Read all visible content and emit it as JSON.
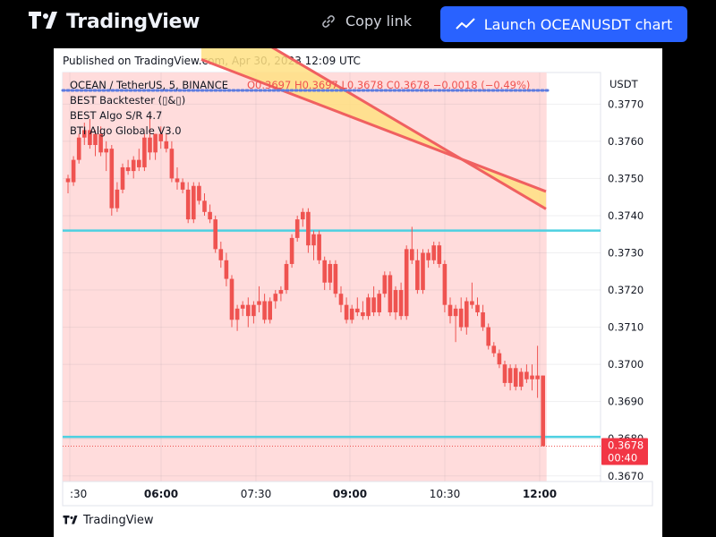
{
  "header": {
    "logo_text": "TradingView",
    "copy_link_label": "Copy link",
    "launch_label": "Launch OCEANUSDT chart"
  },
  "published": "Published on TradingView.com, Apr 30, 2023 12:09 UTC",
  "footer_logo": "TradingView",
  "legend": {
    "symbol": "OCEAN / TetherUS, 5, BINANCE",
    "ohlc": "O0.3697  H0.3697  L0.3678  C0.3678  −0.0018 (−0.49%)",
    "indicators": [
      "BEST Backtester (▯&▯)",
      "BEST Algo S/R 4.7",
      "BTI Algo Globale V3.0"
    ]
  },
  "price_axis": {
    "currency": "USDT",
    "last_price": "0.3678",
    "countdown": "00:40"
  },
  "colors": {
    "up": "#ef5350",
    "down": "#ef5350",
    "background_zone": "#ffdcdc",
    "sr_line": "#4dd0e1",
    "band_fill": "#ffe082",
    "band_edge": "#f06060",
    "dots": "#5c7be0",
    "brand_blue": "#2962ff"
  },
  "chart_data": {
    "type": "candlestick",
    "x_ticks": [
      ":30",
      "06:00",
      "07:30",
      "09:00",
      "10:30",
      "12:00"
    ],
    "bold_ticks": [
      "06:00",
      "09:00",
      "12:00"
    ],
    "y_ticks": [
      "0.3770",
      "0.3760",
      "0.3750",
      "0.3740",
      "0.3730",
      "0.3720",
      "0.3710",
      "0.3700",
      "0.3690",
      "0.3680",
      "0.3670"
    ],
    "ylim": [
      0.36685,
      0.37785
    ],
    "support_resistance": [
      0.3736,
      0.36805
    ],
    "dotted_line": 0.37737,
    "last_price": 0.3678,
    "band": {
      "upper_start": 0.3782,
      "upper_end": 0.37465,
      "lower_start": 0.37965,
      "lower_end": 0.37418
    },
    "candles": [
      [
        0.375,
        0.3751,
        0.3746,
        0.3749
      ],
      [
        0.3749,
        0.3756,
        0.3748,
        0.3755
      ],
      [
        0.3755,
        0.3762,
        0.3754,
        0.3761
      ],
      [
        0.3761,
        0.3765,
        0.3759,
        0.3763
      ],
      [
        0.3763,
        0.3766,
        0.3758,
        0.3759
      ],
      [
        0.3759,
        0.3763,
        0.3756,
        0.3762
      ],
      [
        0.3762,
        0.3764,
        0.3756,
        0.3757
      ],
      [
        0.3757,
        0.376,
        0.3752,
        0.3758
      ],
      [
        0.3758,
        0.3759,
        0.374,
        0.3742
      ],
      [
        0.3742,
        0.3749,
        0.3741,
        0.3747
      ],
      [
        0.3747,
        0.3754,
        0.3746,
        0.3753
      ],
      [
        0.3753,
        0.3755,
        0.3751,
        0.3752
      ],
      [
        0.3752,
        0.3756,
        0.375,
        0.3755
      ],
      [
        0.3755,
        0.3758,
        0.3752,
        0.3753
      ],
      [
        0.3753,
        0.3762,
        0.3752,
        0.3761
      ],
      [
        0.3761,
        0.3767,
        0.3755,
        0.3757
      ],
      [
        0.3757,
        0.3762,
        0.3755,
        0.3762
      ],
      [
        0.3762,
        0.3764,
        0.3758,
        0.376
      ],
      [
        0.376,
        0.3762,
        0.3757,
        0.3758
      ],
      [
        0.3758,
        0.376,
        0.3749,
        0.375
      ],
      [
        0.375,
        0.3753,
        0.3747,
        0.3749
      ],
      [
        0.3749,
        0.375,
        0.3746,
        0.3747
      ],
      [
        0.3747,
        0.3749,
        0.3738,
        0.3739
      ],
      [
        0.3739,
        0.3749,
        0.3738,
        0.3748
      ],
      [
        0.3748,
        0.3749,
        0.3743,
        0.3744
      ],
      [
        0.3744,
        0.3746,
        0.374,
        0.3741
      ],
      [
        0.3741,
        0.3743,
        0.3738,
        0.3739
      ],
      [
        0.3739,
        0.374,
        0.373,
        0.3731
      ],
      [
        0.3731,
        0.3733,
        0.3726,
        0.3728
      ],
      [
        0.3728,
        0.373,
        0.3721,
        0.3723
      ],
      [
        0.3723,
        0.3724,
        0.371,
        0.3712
      ],
      [
        0.3712,
        0.3716,
        0.3709,
        0.3715
      ],
      [
        0.3715,
        0.3717,
        0.3713,
        0.3716
      ],
      [
        0.3716,
        0.3718,
        0.371,
        0.3713
      ],
      [
        0.3713,
        0.3717,
        0.3711,
        0.3716
      ],
      [
        0.3716,
        0.3721,
        0.3714,
        0.3717
      ],
      [
        0.3717,
        0.3719,
        0.3711,
        0.3712
      ],
      [
        0.3712,
        0.3718,
        0.3711,
        0.3717
      ],
      [
        0.3717,
        0.372,
        0.3715,
        0.3719
      ],
      [
        0.3719,
        0.3721,
        0.3717,
        0.372
      ],
      [
        0.372,
        0.3728,
        0.3719,
        0.3727
      ],
      [
        0.3727,
        0.3735,
        0.3726,
        0.3734
      ],
      [
        0.3734,
        0.374,
        0.3733,
        0.3739
      ],
      [
        0.3739,
        0.3742,
        0.3737,
        0.3741
      ],
      [
        0.3741,
        0.3742,
        0.373,
        0.3732
      ],
      [
        0.3732,
        0.3736,
        0.3728,
        0.3735
      ],
      [
        0.3735,
        0.3736,
        0.3727,
        0.3728
      ],
      [
        0.3728,
        0.3729,
        0.372,
        0.3722
      ],
      [
        0.3722,
        0.3728,
        0.372,
        0.3727
      ],
      [
        0.3727,
        0.3728,
        0.3718,
        0.3719
      ],
      [
        0.3719,
        0.3721,
        0.3714,
        0.3716
      ],
      [
        0.3716,
        0.3718,
        0.3711,
        0.3712
      ],
      [
        0.3712,
        0.3716,
        0.3711,
        0.3715
      ],
      [
        0.3715,
        0.3718,
        0.3713,
        0.3714
      ],
      [
        0.3714,
        0.3717,
        0.3712,
        0.3713
      ],
      [
        0.3713,
        0.3719,
        0.3712,
        0.3718
      ],
      [
        0.3718,
        0.3721,
        0.3713,
        0.3714
      ],
      [
        0.3714,
        0.372,
        0.3713,
        0.3719
      ],
      [
        0.3719,
        0.3725,
        0.3718,
        0.3724
      ],
      [
        0.3724,
        0.3725,
        0.3713,
        0.3714
      ],
      [
        0.3714,
        0.3721,
        0.3712,
        0.372
      ],
      [
        0.372,
        0.3722,
        0.3712,
        0.3713
      ],
      [
        0.3713,
        0.3732,
        0.3712,
        0.3731
      ],
      [
        0.3731,
        0.3737,
        0.3727,
        0.3728
      ],
      [
        0.3728,
        0.3731,
        0.3719,
        0.372
      ],
      [
        0.372,
        0.3731,
        0.3719,
        0.373
      ],
      [
        0.373,
        0.3731,
        0.3726,
        0.3728
      ],
      [
        0.3728,
        0.3733,
        0.3727,
        0.3732
      ],
      [
        0.3732,
        0.3733,
        0.3726,
        0.3727
      ],
      [
        0.3727,
        0.3728,
        0.3714,
        0.3716
      ],
      [
        0.3716,
        0.3718,
        0.3711,
        0.3713
      ],
      [
        0.3713,
        0.3716,
        0.3706,
        0.3715
      ],
      [
        0.3715,
        0.3718,
        0.3709,
        0.371
      ],
      [
        0.371,
        0.3718,
        0.3708,
        0.3717
      ],
      [
        0.3717,
        0.3722,
        0.3715,
        0.3716
      ],
      [
        0.3716,
        0.3718,
        0.3713,
        0.3714
      ],
      [
        0.3714,
        0.3716,
        0.3709,
        0.371
      ],
      [
        0.371,
        0.3711,
        0.3704,
        0.3705
      ],
      [
        0.3705,
        0.3706,
        0.3702,
        0.3703
      ],
      [
        0.3703,
        0.3704,
        0.3699,
        0.37
      ],
      [
        0.37,
        0.3701,
        0.3694,
        0.3695
      ],
      [
        0.3695,
        0.37,
        0.3693,
        0.3699
      ],
      [
        0.3699,
        0.37,
        0.3693,
        0.3694
      ],
      [
        0.3694,
        0.3699,
        0.3693,
        0.3698
      ],
      [
        0.3698,
        0.37,
        0.3695,
        0.3696
      ],
      [
        0.3696,
        0.37,
        0.3693,
        0.3697
      ],
      [
        0.3697,
        0.3705,
        0.3691,
        0.3696
      ],
      [
        0.3697,
        0.3697,
        0.3678,
        0.3678
      ]
    ]
  }
}
